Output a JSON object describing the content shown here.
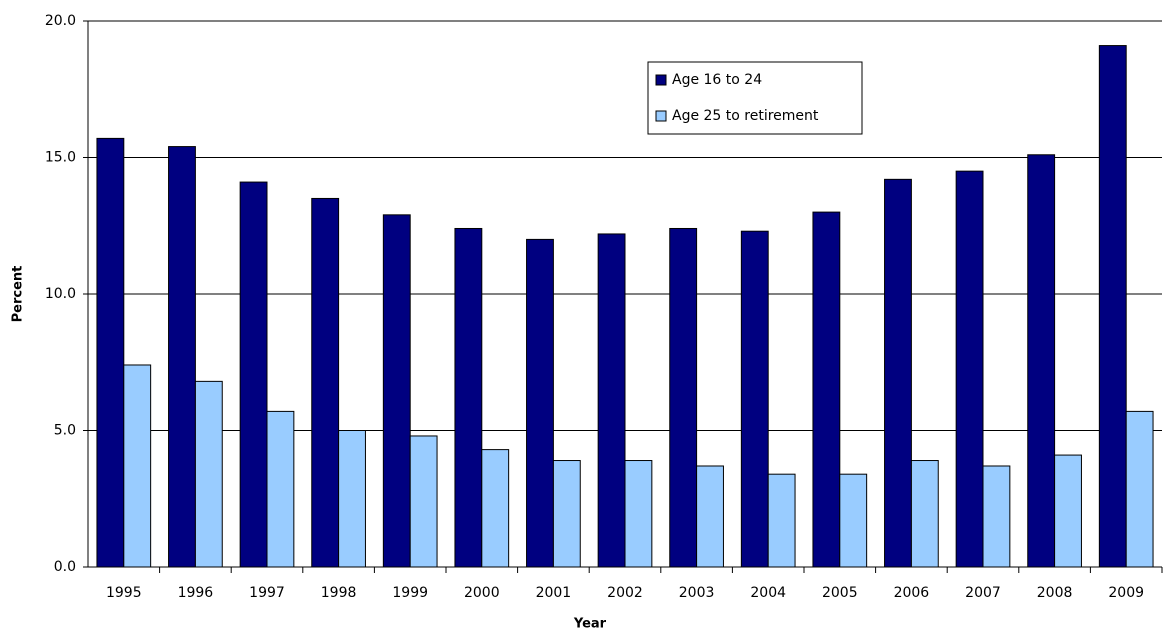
{
  "chart_data": {
    "type": "bar",
    "x_label": "Year",
    "y_label": "Percent",
    "categories": [
      "1995",
      "1996",
      "1997",
      "1998",
      "1999",
      "2000",
      "2001",
      "2002",
      "2003",
      "2004",
      "2005",
      "2006",
      "2007",
      "2008",
      "2009"
    ],
    "series": [
      {
        "name": "Age 16 to 24",
        "color": "#000080",
        "values": [
          15.7,
          15.4,
          14.1,
          13.5,
          12.9,
          12.4,
          12.0,
          12.2,
          12.4,
          12.3,
          13.0,
          14.2,
          14.5,
          15.1,
          19.1
        ]
      },
      {
        "name": "Age 25 to retirement",
        "color": "#99ccff",
        "values": [
          7.4,
          6.8,
          5.7,
          5.0,
          4.8,
          4.3,
          3.9,
          3.9,
          3.7,
          3.4,
          3.4,
          3.9,
          3.7,
          4.1,
          5.7
        ]
      }
    ],
    "ylim": [
      0,
      20
    ],
    "yticks": [
      {
        "value": 0,
        "label": "0.0"
      },
      {
        "value": 5,
        "label": "5.0"
      },
      {
        "value": 10,
        "label": "10.0"
      },
      {
        "value": 15,
        "label": "15.0"
      },
      {
        "value": 20,
        "label": "20.0"
      }
    ],
    "grid": true,
    "legend": "upper center"
  }
}
